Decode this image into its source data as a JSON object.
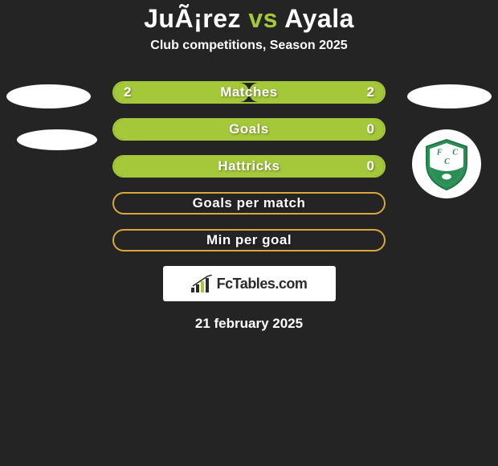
{
  "title": {
    "team_a": "JuÃ¡rez",
    "vs": "vs",
    "team_b": "Ayala",
    "team_a_color": "#ffffff",
    "vs_color": "#a5c73a",
    "team_b_color": "#ffffff"
  },
  "subtitle": "Club competitions, Season 2025",
  "colors": {
    "background": "#242424",
    "accent": "#a5c73a",
    "text": "#ffffff",
    "badge_bg": "#ffffff"
  },
  "stats": [
    {
      "label": "Matches",
      "left_value": "2",
      "right_value": "2",
      "left_pct": 50,
      "right_pct": 50,
      "border_color": "#a5c73a",
      "left_fill_color": "#a5c73a",
      "right_fill_color": "#a5c73a",
      "show_values": true,
      "filled": true
    },
    {
      "label": "Goals",
      "left_value": "",
      "right_value": "0",
      "left_pct": 100,
      "right_pct": 0,
      "border_color": "#a5c73a",
      "left_fill_color": "#a5c73a",
      "right_fill_color": "transparent",
      "show_values": true,
      "filled": true
    },
    {
      "label": "Hattricks",
      "left_value": "",
      "right_value": "0",
      "left_pct": 100,
      "right_pct": 0,
      "border_color": "#a5c73a",
      "left_fill_color": "#a5c73a",
      "right_fill_color": "transparent",
      "show_values": true,
      "filled": true
    },
    {
      "label": "Goals per match",
      "left_value": "",
      "right_value": "",
      "left_pct": 0,
      "right_pct": 0,
      "border_color": "#d9a83b",
      "left_fill_color": "transparent",
      "right_fill_color": "transparent",
      "show_values": false,
      "filled": false
    },
    {
      "label": "Min per goal",
      "left_value": "",
      "right_value": "",
      "left_pct": 0,
      "right_pct": 0,
      "border_color": "#d9a83b",
      "left_fill_color": "transparent",
      "right_fill_color": "transparent",
      "show_values": false,
      "filled": false
    }
  ],
  "badge_text": "FcTables.com",
  "date_text": "21 february 2025",
  "club_logo": {
    "shield_outer": "#2a8f55",
    "shield_inner": "#ffffff",
    "banner_color": "#2a8f55",
    "letter_color": "#2a8f55"
  }
}
